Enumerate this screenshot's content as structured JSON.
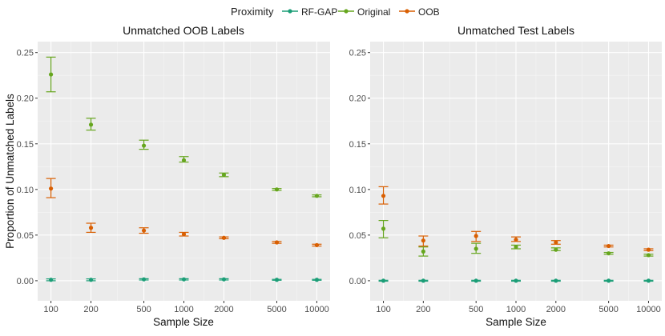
{
  "legend": {
    "title": "Proximity",
    "items": [
      {
        "name": "RF-GAP",
        "color": "#1b9e77"
      },
      {
        "name": "Original",
        "color": "#66a61e"
      },
      {
        "name": "OOB",
        "color": "#d95f02"
      }
    ]
  },
  "ylabel": "Proportion of Unmatched Labels",
  "chart_data": [
    {
      "type": "scatter",
      "title": "Unmatched OOB Labels",
      "xlabel": "Sample Size",
      "ylabel": "Proportion of Unmatched Labels",
      "x_scale": "log10",
      "x": [
        100,
        200,
        500,
        1000,
        2000,
        5000,
        10000
      ],
      "x_tick_labels": [
        "100",
        "200",
        "500",
        "1000",
        "2000",
        "5000",
        "10000"
      ],
      "ylim": [
        -0.022,
        0.262
      ],
      "y_ticks": [
        0.0,
        0.05,
        0.1,
        0.15,
        0.2,
        0.25
      ],
      "y_tick_labels": [
        "0.00",
        "0.05",
        "0.10",
        "0.15",
        "0.20",
        "0.25"
      ],
      "grid": true,
      "series": [
        {
          "name": "RF-GAP",
          "color": "#1b9e77",
          "values": [
            0.001,
            0.001,
            0.0015,
            0.0015,
            0.0015,
            0.001,
            0.001
          ],
          "lower": [
            0.0,
            0.0,
            0.0008,
            0.0008,
            0.0008,
            0.0005,
            0.0005
          ],
          "upper": [
            0.002,
            0.002,
            0.0022,
            0.0022,
            0.0022,
            0.0015,
            0.0015
          ]
        },
        {
          "name": "Original",
          "color": "#66a61e",
          "values": [
            0.226,
            0.171,
            0.148,
            0.132,
            0.116,
            0.1,
            0.093
          ],
          "lower": [
            0.207,
            0.165,
            0.144,
            0.13,
            0.114,
            0.099,
            0.092
          ],
          "upper": [
            0.245,
            0.178,
            0.154,
            0.136,
            0.118,
            0.101,
            0.094
          ]
        },
        {
          "name": "OOB",
          "color": "#d95f02",
          "values": [
            0.101,
            0.058,
            0.055,
            0.051,
            0.047,
            0.042,
            0.039
          ],
          "lower": [
            0.091,
            0.053,
            0.052,
            0.049,
            0.046,
            0.041,
            0.038
          ],
          "upper": [
            0.112,
            0.063,
            0.058,
            0.053,
            0.048,
            0.043,
            0.04
          ]
        }
      ]
    },
    {
      "type": "scatter",
      "title": "Unmatched Test Labels",
      "xlabel": "Sample Size",
      "ylabel": "",
      "x_scale": "log10",
      "x": [
        100,
        200,
        500,
        1000,
        2000,
        5000,
        10000
      ],
      "x_tick_labels": [
        "100",
        "200",
        "500",
        "1000",
        "2000",
        "5000",
        "10000"
      ],
      "ylim": [
        -0.022,
        0.262
      ],
      "y_ticks": [
        0.0,
        0.05,
        0.1,
        0.15,
        0.2,
        0.25
      ],
      "y_tick_labels": [
        "0.00",
        "0.05",
        "0.10",
        "0.15",
        "0.20",
        "0.25"
      ],
      "grid": true,
      "series": [
        {
          "name": "RF-GAP",
          "color": "#1b9e77",
          "values": [
            0.0,
            0.0,
            0.0,
            0.0,
            0.0,
            0.0,
            0.0
          ],
          "lower": [
            -0.0005,
            -0.0005,
            -0.0005,
            -0.0005,
            -0.0005,
            -0.0005,
            -0.0005
          ],
          "upper": [
            0.0005,
            0.0005,
            0.0005,
            0.0005,
            0.0005,
            0.0005,
            0.0005
          ]
        },
        {
          "name": "Original",
          "color": "#66a61e",
          "values": [
            0.057,
            0.032,
            0.035,
            0.037,
            0.034,
            0.03,
            0.028
          ],
          "lower": [
            0.047,
            0.027,
            0.03,
            0.035,
            0.033,
            0.029,
            0.027
          ],
          "upper": [
            0.066,
            0.037,
            0.041,
            0.039,
            0.036,
            0.031,
            0.029
          ]
        },
        {
          "name": "OOB",
          "color": "#d95f02",
          "values": [
            0.093,
            0.044,
            0.049,
            0.045,
            0.042,
            0.038,
            0.034
          ],
          "lower": [
            0.084,
            0.038,
            0.043,
            0.043,
            0.04,
            0.037,
            0.033
          ],
          "upper": [
            0.103,
            0.049,
            0.054,
            0.048,
            0.044,
            0.039,
            0.035
          ]
        }
      ]
    }
  ]
}
